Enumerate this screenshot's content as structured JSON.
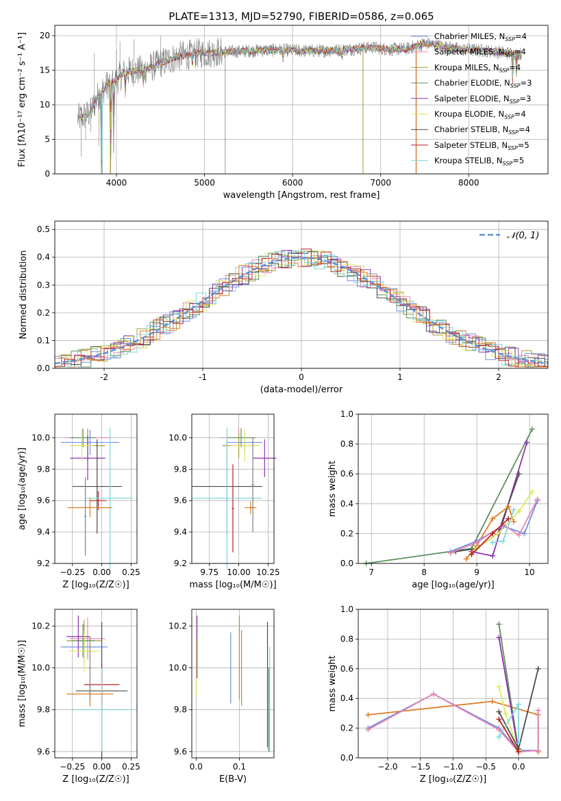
{
  "figure_title": "PLATE=1313, MJD=52790, FIBERID=0586, z=0.065",
  "colors": {
    "Chabrier MILES": "#6f8fe0",
    "Salpeter MILES": "#e884b5",
    "Kroupa MILES": "#a89a3a",
    "Chabrier ELODIE": "#5a8f5a",
    "Salpeter ELODIE": "#8e2fb0",
    "Kroupa ELODIE": "#d9ea5a",
    "Chabrier STELIB": "#4a4a4a",
    "Salpeter STELIB": "#b81f1f",
    "Kroupa STELIB": "#7fd6df",
    "orange": "#e07b25",
    "gauss": "#5b8fd6",
    "gray": "#808080"
  },
  "legend_spectrum": [
    {
      "label": "Chabrier MILES, N",
      "sub": "SSP",
      "suffix": "=4"
    },
    {
      "label": "Salpeter MILES, N",
      "sub": "SSP",
      "suffix": "=4"
    },
    {
      "label": "Kroupa MILES, N",
      "sub": "SSP",
      "suffix": "=4"
    },
    {
      "label": "Chabrier ELODIE, N",
      "sub": "SSP",
      "suffix": "=3"
    },
    {
      "label": "Salpeter ELODIE, N",
      "sub": "SSP",
      "suffix": "=3"
    },
    {
      "label": "Kroupa ELODIE, N",
      "sub": "SSP",
      "suffix": "=4"
    },
    {
      "label": "Chabrier STELIB, N",
      "sub": "SSP",
      "suffix": "=4"
    },
    {
      "label": "Salpeter STELIB, N",
      "sub": "SSP",
      "suffix": "=5"
    },
    {
      "label": "Kroupa STELIB, N",
      "sub": "SSP",
      "suffix": "=5"
    }
  ],
  "legend_hist": "𝒩(0, 1)",
  "chart_data": [
    {
      "id": "spectrum",
      "type": "line",
      "xlabel": "wavelength [Angstrom, rest frame]",
      "ylabel": "Flux [fλ10⁻¹⁷ erg cm⁻² s⁻¹ A⁻¹]",
      "xlim": [
        3300,
        8900
      ],
      "ylim": [
        0,
        21.5
      ],
      "xticks": [
        4000,
        5000,
        6000,
        7000,
        8000
      ],
      "yticks": [
        0,
        5,
        10,
        15,
        20
      ],
      "continuum": [
        [
          3560,
          8.0
        ],
        [
          3700,
          8.8
        ],
        [
          3800,
          11.5
        ],
        [
          3900,
          13.0
        ],
        [
          4000,
          13.6
        ],
        [
          4100,
          14.8
        ],
        [
          4300,
          15.0
        ],
        [
          4500,
          16.0
        ],
        [
          4700,
          17.0
        ],
        [
          4900,
          17.4
        ],
        [
          5100,
          17.6
        ],
        [
          5300,
          17.7
        ],
        [
          5500,
          17.8
        ],
        [
          5700,
          17.9
        ],
        [
          5900,
          17.9
        ],
        [
          6100,
          17.8
        ],
        [
          6300,
          17.8
        ],
        [
          6500,
          17.9
        ],
        [
          6700,
          18.1
        ],
        [
          6900,
          18.3
        ],
        [
          7100,
          18.0
        ],
        [
          7300,
          18.1
        ],
        [
          7500,
          18.9
        ],
        [
          7700,
          18.5
        ],
        [
          7900,
          18.0
        ],
        [
          8100,
          17.9
        ],
        [
          8300,
          17.7
        ],
        [
          8500,
          17.4
        ],
        [
          8600,
          17.4
        ]
      ],
      "absorptions": [
        [
          3830,
          0
        ],
        [
          3934,
          0
        ],
        [
          3968,
          3
        ],
        [
          4101,
          11
        ],
        [
          4305,
          12.5
        ],
        [
          4861,
          15.5
        ],
        [
          5175,
          16
        ],
        [
          5892,
          16.2
        ],
        [
          6563,
          16.5
        ],
        [
          8498,
          13
        ],
        [
          8542,
          14
        ],
        [
          8662,
          14
        ]
      ],
      "noise_spikes": [
        [
          3600,
          2.5
        ],
        [
          3650,
          5
        ],
        [
          3710,
          6
        ],
        [
          3750,
          17.5
        ],
        [
          3800,
          4
        ],
        [
          4000,
          18
        ],
        [
          4040,
          19.2
        ],
        [
          4200,
          19.5
        ],
        [
          4500,
          20
        ],
        [
          5235,
          0
        ],
        [
          6800,
          0
        ],
        [
          7400,
          0
        ]
      ]
    },
    {
      "id": "residual_hist",
      "type": "histogram",
      "xlabel": "(data-model)/error",
      "ylabel": "Normed distribution",
      "xlim": [
        -2.5,
        2.5
      ],
      "ylim": [
        0,
        0.53
      ],
      "xticks": [
        -2,
        -1,
        0,
        1,
        2
      ],
      "yticks": [
        0.0,
        0.1,
        0.2,
        0.3,
        0.4,
        0.5
      ],
      "bin_width": 0.1,
      "gaussian": {
        "mu": 0,
        "sigma": 1
      }
    },
    {
      "id": "age_vs_Z",
      "type": "errorbar",
      "xlabel": "Z [log₁₀(Z/Z☉)]",
      "ylabel": "age  [log₁₀(age/yr)]",
      "xlim": [
        -0.4,
        0.3
      ],
      "ylim": [
        9.2,
        10.15
      ],
      "xticks": [
        -0.25,
        0.0,
        0.25
      ],
      "xticklabels": [
        "−0.25",
        "0.00",
        "0.25"
      ],
      "yticks": [
        9.2,
        9.4,
        9.6,
        9.8,
        10.0
      ],
      "points": [
        {
          "s": "Chabrier MILES",
          "x": -0.1,
          "xe": 0.25,
          "y": 9.97,
          "ye": 0.08
        },
        {
          "s": "Salpeter MILES",
          "x": -0.12,
          "xe": 0.2,
          "y": 10.0,
          "ye": 0.06
        },
        {
          "s": "Kroupa MILES",
          "x": -0.12,
          "xe": 0.15,
          "y": 9.95,
          "ye": 0.1
        },
        {
          "s": "Chabrier ELODIE",
          "x": -0.16,
          "xe": 0.11,
          "y": 10.0,
          "ye": 0.06
        },
        {
          "s": "Salpeter ELODIE",
          "x": -0.12,
          "xe": 0.15,
          "y": 9.87,
          "ye": 0.14
        },
        {
          "s": "Kroupa ELODIE",
          "x": -0.17,
          "xe": 0.1,
          "y": 9.95,
          "ye": 0.1
        },
        {
          "s": "Chabrier STELIB",
          "x": -0.04,
          "xe": 0.21,
          "y": 9.69,
          "ye": 0.3
        },
        {
          "s": "Salpeter STELIB",
          "x": -0.03,
          "xe": 0.07,
          "y": 9.6,
          "ye": 0.06
        },
        {
          "s": "Kroupa STELIB",
          "x": 0.07,
          "xe": 0.2,
          "y": 9.615,
          "ye": 0.45
        },
        {
          "s": "orange",
          "x": -0.1,
          "xe": 0.19,
          "y": 9.555,
          "ye": 0.06
        },
        {
          "s": "gray",
          "x": -0.14,
          "xe": 0.01,
          "y": 9.5,
          "ye": 0.25
        }
      ]
    },
    {
      "id": "age_vs_mass",
      "type": "errorbar",
      "xlabel": "mass [log₁₀(M/M☉)]",
      "ylabel": "",
      "xlim": [
        9.6,
        10.3
      ],
      "ylim": [
        9.2,
        10.15
      ],
      "xticks": [
        9.75,
        10.0,
        10.25
      ],
      "xticklabels": [
        "9.75",
        "10.00",
        "10.25"
      ],
      "yticks": [
        9.2,
        9.4,
        9.6,
        9.8,
        10.0
      ],
      "points": [
        {
          "s": "Chabrier MILES",
          "x": 10.05,
          "xe": 0.15,
          "y": 9.97,
          "ye": 0.06
        },
        {
          "s": "Salpeter MILES",
          "x": 10.0,
          "xe": 0.15,
          "y": 10.0,
          "ye": 0.06
        },
        {
          "s": "Kroupa MILES",
          "x": 10.0,
          "xe": 0.14,
          "y": 9.95,
          "ye": 0.08
        },
        {
          "s": "Chabrier ELODIE",
          "x": 10.02,
          "xe": 0.12,
          "y": 10.0,
          "ye": 0.06
        },
        {
          "s": "Salpeter ELODIE",
          "x": 10.22,
          "xe": 0.1,
          "y": 9.87,
          "ye": 0.12
        },
        {
          "s": "Kroupa ELODIE",
          "x": 10.05,
          "xe": 0.12,
          "y": 9.95,
          "ye": 0.1
        },
        {
          "s": "Chabrier STELIB",
          "x": 9.9,
          "xe": 0.3,
          "y": 9.69,
          "ye": 0.3
        },
        {
          "s": "Salpeter STELIB",
          "x": 9.95,
          "xe": 0.01,
          "y": 9.55,
          "ye": 0.28
        },
        {
          "s": "Kroupa STELIB",
          "x": 9.9,
          "xe": 0.3,
          "y": 9.615,
          "ye": 0.45
        },
        {
          "s": "orange",
          "x": 10.1,
          "xe": 0.05,
          "y": 9.555,
          "ye": 0.04
        },
        {
          "s": "gray",
          "x": 10.12,
          "xe": 0.01,
          "y": 9.7,
          "ye": 0.3
        }
      ]
    },
    {
      "id": "massweight_vs_age",
      "type": "line",
      "xlabel": "age  [log₁₀(age/yr)]",
      "ylabel": "mass weight",
      "xlim": [
        6.75,
        10.35
      ],
      "ylim": [
        0,
        1.0
      ],
      "xticks": [
        7,
        8,
        9,
        10
      ],
      "yticks": [
        0.0,
        0.2,
        0.4,
        0.6,
        0.8,
        1.0
      ],
      "series": [
        {
          "s": "Chabrier ELODIE",
          "pts": [
            [
              6.9,
              0.0
            ],
            [
              8.9,
              0.1
            ],
            [
              10.05,
              0.9
            ]
          ]
        },
        {
          "s": "Salpeter ELODIE",
          "pts": [
            [
              8.9,
              0.08
            ],
            [
              9.3,
              0.05
            ],
            [
              9.95,
              0.81
            ]
          ]
        },
        {
          "s": "Chabrier STELIB",
          "pts": [
            [
              8.5,
              0.07
            ],
            [
              8.6,
              0.08
            ],
            [
              9.0,
              0.1
            ],
            [
              9.4,
              0.2
            ],
            [
              9.8,
              0.6
            ]
          ]
        },
        {
          "s": "orange",
          "pts": [
            [
              8.8,
              0.03
            ],
            [
              9.0,
              0.12
            ],
            [
              9.3,
              0.3
            ],
            [
              9.6,
              0.38
            ],
            [
              9.7,
              0.28
            ]
          ]
        },
        {
          "s": "Kroupa ELODIE",
          "pts": [
            [
              9.0,
              0.1
            ],
            [
              9.4,
              0.2
            ],
            [
              9.8,
              0.35
            ],
            [
              10.05,
              0.48
            ]
          ]
        },
        {
          "s": "Chabrier MILES",
          "pts": [
            [
              8.5,
              0.08
            ],
            [
              9.0,
              0.15
            ],
            [
              9.5,
              0.25
            ],
            [
              9.9,
              0.2
            ],
            [
              10.15,
              0.42
            ]
          ]
        },
        {
          "s": "Salpeter MILES",
          "pts": [
            [
              8.5,
              0.07
            ],
            [
              9.0,
              0.14
            ],
            [
              9.5,
              0.26
            ],
            [
              9.8,
              0.19
            ],
            [
              10.15,
              0.43
            ]
          ]
        },
        {
          "s": "Kroupa STELIB",
          "pts": [
            [
              9.3,
              0.14
            ],
            [
              9.5,
              0.15
            ],
            [
              9.7,
              0.36
            ]
          ]
        },
        {
          "s": "Salpeter STELIB",
          "pts": [
            [
              8.9,
              0.06
            ],
            [
              9.3,
              0.2
            ],
            [
              9.6,
              0.3
            ]
          ]
        }
      ]
    },
    {
      "id": "mass_vs_Z",
      "type": "errorbar",
      "xlabel": "Z [log₁₀(Z/Z☉)]",
      "ylabel": "mass [log₁₀(M/M☉)]",
      "xlim": [
        -0.4,
        0.3
      ],
      "ylim": [
        9.57,
        10.28
      ],
      "xticks": [
        -0.25,
        0.0,
        0.25
      ],
      "xticklabels": [
        "−0.25",
        "0.00",
        "0.25"
      ],
      "yticks": [
        9.6,
        9.8,
        10.0,
        10.2
      ],
      "points": [
        {
          "s": "Chabrier MILES",
          "x": -0.15,
          "xe": 0.2,
          "y": 10.1,
          "ye": 0.08
        },
        {
          "s": "Salpeter MILES",
          "x": -0.12,
          "xe": 0.15,
          "y": 10.14,
          "ye": 0.1
        },
        {
          "s": "Kroupa MILES",
          "x": -0.15,
          "xe": 0.15,
          "y": 10.13,
          "ye": 0.1
        },
        {
          "s": "Chabrier ELODIE",
          "x": -0.16,
          "xe": 0.1,
          "y": 10.13,
          "ye": 0.08
        },
        {
          "s": "Salpeter ELODIE",
          "x": -0.2,
          "xe": 0.1,
          "y": 10.15,
          "ye": 0.1
        },
        {
          "s": "Kroupa ELODIE",
          "x": -0.15,
          "xe": 0.13,
          "y": 10.08,
          "ye": 0.1
        },
        {
          "s": "Chabrier STELIB",
          "x": 0.0,
          "xe": 0.22,
          "y": 9.89,
          "ye": 0.33
        },
        {
          "s": "Salpeter STELIB",
          "x": 0.0,
          "xe": 0.15,
          "y": 9.92,
          "ye": 0.1
        },
        {
          "s": "Kroupa STELIB",
          "x": 0.0,
          "xe": 0.25,
          "y": 9.8,
          "ye": 0.2
        },
        {
          "s": "orange",
          "x": -0.1,
          "xe": 0.2,
          "y": 9.875,
          "ye": 0.06
        },
        {
          "s": "gray",
          "x": -0.1,
          "xe": 0.01,
          "y": 10.0,
          "ye": 0.15
        }
      ]
    },
    {
      "id": "mass_vs_EBV",
      "type": "errorbar",
      "xlabel": "E(B-V)",
      "ylabel": "",
      "xlim": [
        -0.01,
        0.18
      ],
      "ylim": [
        9.57,
        10.28
      ],
      "xticks": [
        0.0,
        0.1
      ],
      "xticklabels": [
        "0.0",
        "0.1"
      ],
      "yticks": [
        9.6,
        9.8,
        10.0,
        10.2
      ],
      "points": [
        {
          "s": "Chabrier MILES",
          "x": 0.08,
          "xe": 0,
          "y": 10.0,
          "ye": 0.17
        },
        {
          "s": "Salpeter MILES",
          "x": 0.1,
          "xe": 0,
          "y": 10.05,
          "ye": 0.2
        },
        {
          "s": "Kroupa MILES",
          "x": 0.1,
          "xe": 0,
          "y": 10.05,
          "ye": 0.2
        },
        {
          "s": "Salpeter ELODIE",
          "x": 0.002,
          "xe": 0,
          "y": 10.1,
          "ye": 0.15
        },
        {
          "s": "Kroupa ELODIE",
          "x": 0.0,
          "xe": 0,
          "y": 10.0,
          "ye": 0.14
        },
        {
          "s": "orange",
          "x": 0.105,
          "xe": 0,
          "y": 10.0,
          "ye": 0.18
        },
        {
          "s": "Chabrier STELIB",
          "x": 0.165,
          "xe": 0,
          "y": 9.92,
          "ye": 0.3
        },
        {
          "s": "Kroupa STELIB",
          "x": 0.17,
          "xe": 0,
          "y": 9.85,
          "ye": 0.25
        },
        {
          "s": "Chabrier ELODIE",
          "x": 0.168,
          "xe": 0,
          "y": 9.8,
          "ye": 0.2
        }
      ]
    },
    {
      "id": "massweight_vs_Z",
      "type": "line",
      "xlabel": "Z [log₁₀(Z/Z☉)]",
      "ylabel": "mass weight",
      "xlim": [
        -2.45,
        0.45
      ],
      "ylim": [
        0,
        1.0
      ],
      "xticks": [
        -2.0,
        -1.5,
        -1.0,
        -0.5,
        0.0
      ],
      "xticklabels": [
        "−2.0",
        "−1.5",
        "−1.0",
        "−0.5",
        "0.0"
      ],
      "yticks": [
        0.0,
        0.2,
        0.4,
        0.6,
        0.8,
        1.0
      ],
      "series": [
        {
          "s": "orange",
          "pts": [
            [
              -2.3,
              0.29
            ],
            [
              -0.4,
              0.38
            ],
            [
              0.3,
              0.29
            ],
            [
              0.3,
              0.04
            ]
          ]
        },
        {
          "s": "Chabrier MILES",
          "pts": [
            [
              -2.3,
              0.2
            ],
            [
              -1.3,
              0.43
            ],
            [
              -0.3,
              0.2
            ],
            [
              0.0,
              0.05
            ],
            [
              0.3,
              0.05
            ],
            [
              0.3,
              0.32
            ]
          ]
        },
        {
          "s": "Salpeter MILES",
          "pts": [
            [
              -2.3,
              0.19
            ],
            [
              -1.3,
              0.43
            ],
            [
              -0.3,
              0.19
            ],
            [
              0.0,
              0.04
            ],
            [
              0.3,
              0.05
            ],
            [
              0.3,
              0.32
            ]
          ]
        },
        {
          "s": "Chabrier ELODIE",
          "pts": [
            [
              -0.3,
              0.9
            ],
            [
              0.0,
              0.05
            ]
          ]
        },
        {
          "s": "Salpeter ELODIE",
          "pts": [
            [
              -0.3,
              0.81
            ],
            [
              0.0,
              0.04
            ]
          ]
        },
        {
          "s": "Kroupa ELODIE",
          "pts": [
            [
              -0.3,
              0.48
            ],
            [
              -0.2,
              0.3
            ],
            [
              0.0,
              0.05
            ]
          ]
        },
        {
          "s": "Chabrier STELIB",
          "pts": [
            [
              -0.3,
              0.31
            ],
            [
              0.0,
              0.06
            ],
            [
              0.3,
              0.6
            ]
          ]
        },
        {
          "s": "Kroupa STELIB",
          "pts": [
            [
              -0.3,
              0.14
            ],
            [
              0.0,
              0.36
            ],
            [
              0.0,
              0.1
            ]
          ]
        },
        {
          "s": "Salpeter STELIB",
          "pts": [
            [
              -0.3,
              0.26
            ],
            [
              0.0,
              0.04
            ]
          ]
        }
      ]
    }
  ]
}
